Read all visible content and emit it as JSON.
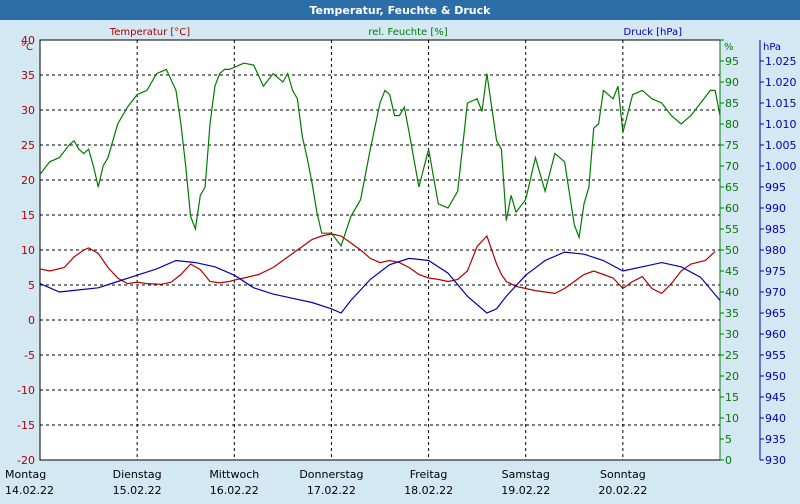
{
  "window": {
    "title": "Temperatur, Feuchte & Druck"
  },
  "colors": {
    "title_bar": "#2b6ea8",
    "background": "#d4e8f4",
    "temperature": "#b00000",
    "humidity": "#007a00",
    "pressure": "#0000b0",
    "grid": "#000000"
  },
  "chart_data": {
    "type": "line",
    "title": "Temperatur, Feuchte & Druck",
    "grid": true,
    "x_days": [
      {
        "weekday": "Montag",
        "date": "14.02.22"
      },
      {
        "weekday": "Dienstag",
        "date": "15.02.22"
      },
      {
        "weekday": "Mittwoch",
        "date": "16.02.22"
      },
      {
        "weekday": "Donnerstag",
        "date": "17.02.22"
      },
      {
        "weekday": "Freitag",
        "date": "18.02.22"
      },
      {
        "weekday": "Samstag",
        "date": "19.02.22"
      },
      {
        "weekday": "Sonntag",
        "date": "20.02.22"
      }
    ],
    "axes": {
      "temperature": {
        "label": "Temperatur [°C]",
        "unit": "°C",
        "range": [
          -20,
          40
        ],
        "ticks": [
          40,
          35,
          30,
          25,
          20,
          15,
          10,
          5,
          0,
          -5,
          -10,
          -15,
          -20
        ]
      },
      "humidity": {
        "label": "rel. Feuchte [%]",
        "unit": "%",
        "range": [
          0,
          100
        ],
        "ticks": [
          100,
          95,
          90,
          85,
          80,
          75,
          70,
          65,
          60,
          55,
          50,
          45,
          40,
          35,
          30,
          25,
          20,
          15,
          10,
          5,
          0
        ]
      },
      "pressure": {
        "label": "Druck [hPa]",
        "unit": "hPa",
        "range": [
          930,
          1030
        ],
        "ticks": [
          "1.025",
          "1.020",
          "1.015",
          "1.010",
          "1.005",
          "1.000",
          "995",
          "990",
          "985",
          "980",
          "975",
          "970",
          "965",
          "960",
          "955",
          "950",
          "945",
          "940",
          "935",
          "930"
        ]
      }
    },
    "x_range_days": [
      0,
      7
    ],
    "series": [
      {
        "name": "Temperatur [°C]",
        "axis": "temperature",
        "x": [
          0,
          0.1,
          0.25,
          0.35,
          0.45,
          0.5,
          0.6,
          0.7,
          0.8,
          0.9,
          1.0,
          1.1,
          1.25,
          1.35,
          1.45,
          1.55,
          1.65,
          1.75,
          1.85,
          1.95,
          2.0,
          2.1,
          2.25,
          2.4,
          2.55,
          2.7,
          2.8,
          2.9,
          3.0,
          3.1,
          3.2,
          3.3,
          3.4,
          3.5,
          3.6,
          3.7,
          3.8,
          3.9,
          4.0,
          4.1,
          4.2,
          4.3,
          4.4,
          4.5,
          4.6,
          4.7,
          4.75,
          4.8,
          4.9,
          5.0,
          5.1,
          5.2,
          5.3,
          5.4,
          5.5,
          5.6,
          5.7,
          5.8,
          5.9,
          6.0,
          6.1,
          6.2,
          6.3,
          6.4,
          6.5,
          6.6,
          6.7,
          6.85,
          6.95
        ],
        "values": [
          7.3,
          7,
          7.5,
          9,
          10,
          10.3,
          9.5,
          7.5,
          6,
          5.2,
          5.4,
          5.2,
          5.1,
          5.4,
          6.5,
          8,
          7.2,
          5.5,
          5.3,
          5.5,
          5.7,
          6,
          6.5,
          7.5,
          9,
          10.5,
          11.5,
          12,
          12.3,
          12,
          11,
          10,
          8.8,
          8.2,
          8.5,
          8.2,
          7.5,
          6.5,
          6,
          5.8,
          5.5,
          5.8,
          7,
          10.5,
          12,
          8,
          6.5,
          5.5,
          4.8,
          4.5,
          4.2,
          4,
          3.8,
          4.5,
          5.5,
          6.5,
          7,
          6.5,
          6,
          4.5,
          5.5,
          6.2,
          4.5,
          3.8,
          5.2,
          7,
          8,
          8.5,
          9.8
        ]
      },
      {
        "name": "rel. Feuchte [%]",
        "axis": "humidity",
        "x": [
          0,
          0.1,
          0.2,
          0.3,
          0.35,
          0.4,
          0.45,
          0.5,
          0.55,
          0.6,
          0.65,
          0.7,
          0.8,
          0.9,
          1.0,
          1.1,
          1.2,
          1.3,
          1.4,
          1.45,
          1.5,
          1.55,
          1.6,
          1.65,
          1.7,
          1.75,
          1.8,
          1.85,
          1.9,
          1.95,
          2.0,
          2.05,
          2.1,
          2.2,
          2.3,
          2.4,
          2.5,
          2.55,
          2.6,
          2.65,
          2.7,
          2.75,
          2.8,
          2.85,
          2.9,
          3.0,
          3.1,
          3.2,
          3.3,
          3.4,
          3.5,
          3.55,
          3.6,
          3.65,
          3.7,
          3.75,
          3.8,
          3.9,
          4.0,
          4.1,
          4.2,
          4.3,
          4.4,
          4.5,
          4.55,
          4.6,
          4.65,
          4.7,
          4.75,
          4.8,
          4.85,
          4.9,
          5.0,
          5.1,
          5.2,
          5.3,
          5.4,
          5.5,
          5.55,
          5.6,
          5.65,
          5.7,
          5.75,
          5.8,
          5.85,
          5.9,
          5.95,
          6.0,
          6.1,
          6.2,
          6.3,
          6.4,
          6.5,
          6.6,
          6.7,
          6.8,
          6.9,
          6.95,
          7.0
        ],
        "values": [
          68,
          71,
          72,
          75,
          76,
          74,
          73,
          74,
          70,
          65,
          70,
          72,
          80,
          84,
          87,
          88,
          92,
          93,
          88,
          80,
          70,
          58,
          55,
          63,
          65,
          80,
          89,
          92,
          93,
          93,
          93.5,
          94,
          94.5,
          94,
          89,
          92,
          90,
          92,
          88,
          86,
          77,
          72,
          66,
          59,
          54,
          54,
          51,
          58,
          62,
          74,
          85,
          88,
          87,
          82,
          82,
          84,
          78,
          65,
          74,
          61,
          60,
          64,
          85,
          86,
          83,
          92,
          84,
          76,
          74,
          57,
          63,
          59,
          62,
          72,
          64,
          73,
          71,
          56,
          53,
          61,
          65,
          79,
          80,
          88,
          87,
          86,
          89,
          78,
          87,
          88,
          86,
          85,
          82,
          80,
          82,
          85,
          88,
          88,
          82
        ]
      },
      {
        "name": "Druck [hPa]",
        "axis": "pressure",
        "x": [
          0,
          0.2,
          0.4,
          0.6,
          0.8,
          1.0,
          1.2,
          1.4,
          1.6,
          1.8,
          2.0,
          2.2,
          2.4,
          2.6,
          2.8,
          3.0,
          3.1,
          3.2,
          3.4,
          3.6,
          3.8,
          4.0,
          4.2,
          4.4,
          4.6,
          4.7,
          4.8,
          5.0,
          5.2,
          5.4,
          5.6,
          5.8,
          6.0,
          6.2,
          6.4,
          6.6,
          6.8,
          7.0
        ],
        "values": [
          972,
          970,
          970.5,
          971,
          972.5,
          974,
          975.5,
          977.5,
          977,
          976,
          974,
          971,
          969.5,
          968.5,
          967.5,
          966,
          965,
          968,
          973,
          976.5,
          978,
          977.5,
          974.5,
          969,
          965,
          966,
          969,
          974,
          977.5,
          979.5,
          979,
          977.5,
          975,
          976,
          977,
          976,
          973.5,
          968
        ]
      }
    ]
  }
}
